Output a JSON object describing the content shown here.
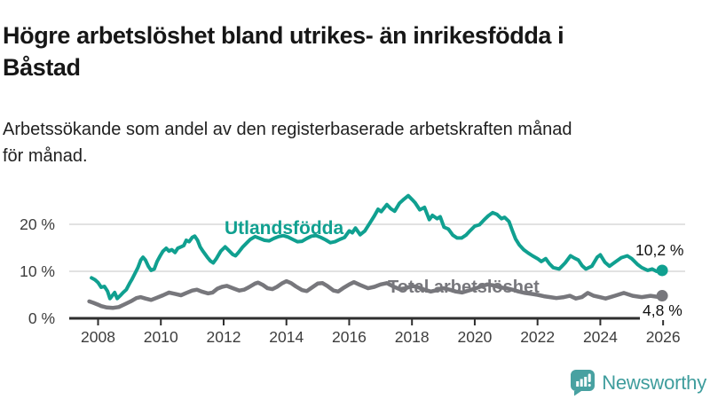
{
  "header": {
    "title_lines": [
      "Högre arbetslöshet bland utrikes- än inrikesfödda i",
      "Båstad"
    ],
    "subtitle_lines": [
      "Arbetssökande som andel av den registerbaserade arbetskraften månad",
      "för månad."
    ]
  },
  "chart_data": {
    "type": "line",
    "title": "Högre arbetslöshet bland utrikes- än inrikesfödda i Båstad",
    "subtitle": "Arbetssökande som andel av den registerbaserade arbetskraften månad för månad.",
    "unit": "%",
    "grid": "horizontal",
    "x_axis": {
      "ticks": [
        "2008",
        "2010",
        "2012",
        "2014",
        "2016",
        "2018",
        "2020",
        "2022",
        "2024",
        "2026"
      ],
      "range": [
        2007.7,
        2026.3
      ]
    },
    "y_axis": {
      "ticks": [
        "0 %",
        "10 %",
        "20 %"
      ],
      "tick_values": [
        0,
        10,
        20
      ],
      "range": [
        0,
        27
      ]
    },
    "colors": {
      "grid": "#d9d9d9",
      "axis": "#2e2e2e",
      "tick_text": "#3d3d3d"
    },
    "series": [
      {
        "name": "Utlandsfödda",
        "color": "#10a090",
        "end_value": 10.2,
        "end_label": "10,2 %",
        "points": [
          [
            2007.79,
            8.6
          ],
          [
            2007.9,
            8.2
          ],
          [
            2008.0,
            7.6
          ],
          [
            2008.1,
            6.6
          ],
          [
            2008.2,
            6.8
          ],
          [
            2008.3,
            5.8
          ],
          [
            2008.38,
            4.2
          ],
          [
            2008.45,
            4.8
          ],
          [
            2008.53,
            5.5
          ],
          [
            2008.61,
            4.2
          ],
          [
            2008.7,
            4.8
          ],
          [
            2008.8,
            5.5
          ],
          [
            2008.9,
            6.1
          ],
          [
            2009.0,
            7.4
          ],
          [
            2009.08,
            8.3
          ],
          [
            2009.18,
            9.6
          ],
          [
            2009.27,
            10.8
          ],
          [
            2009.36,
            12.4
          ],
          [
            2009.43,
            13.0
          ],
          [
            2009.51,
            12.4
          ],
          [
            2009.6,
            11.1
          ],
          [
            2009.69,
            10.2
          ],
          [
            2009.79,
            10.5
          ],
          [
            2009.88,
            12.1
          ],
          [
            2009.98,
            13.3
          ],
          [
            2010.07,
            14.3
          ],
          [
            2010.17,
            14.9
          ],
          [
            2010.26,
            14.3
          ],
          [
            2010.35,
            14.6
          ],
          [
            2010.45,
            14.0
          ],
          [
            2010.54,
            14.9
          ],
          [
            2010.64,
            15.2
          ],
          [
            2010.73,
            15.5
          ],
          [
            2010.81,
            16.6
          ],
          [
            2010.9,
            16.3
          ],
          [
            2011.0,
            17.2
          ],
          [
            2011.08,
            17.5
          ],
          [
            2011.17,
            16.6
          ],
          [
            2011.25,
            15.2
          ],
          [
            2011.34,
            14.3
          ],
          [
            2011.48,
            13.0
          ],
          [
            2011.58,
            12.2
          ],
          [
            2011.67,
            11.8
          ],
          [
            2011.77,
            12.7
          ],
          [
            2011.91,
            14.3
          ],
          [
            2012.05,
            15.2
          ],
          [
            2012.14,
            14.6
          ],
          [
            2012.29,
            13.6
          ],
          [
            2012.38,
            13.3
          ],
          [
            2012.47,
            14.0
          ],
          [
            2012.61,
            15.2
          ],
          [
            2012.76,
            16.2
          ],
          [
            2012.85,
            16.8
          ],
          [
            2013.0,
            17.4
          ],
          [
            2013.15,
            17.0
          ],
          [
            2013.3,
            16.6
          ],
          [
            2013.45,
            16.5
          ],
          [
            2013.6,
            17.0
          ],
          [
            2013.75,
            17.4
          ],
          [
            2013.9,
            17.6
          ],
          [
            2014.05,
            17.3
          ],
          [
            2014.2,
            16.8
          ],
          [
            2014.35,
            16.3
          ],
          [
            2014.5,
            16.4
          ],
          [
            2014.65,
            17.0
          ],
          [
            2014.8,
            17.5
          ],
          [
            2014.95,
            17.6
          ],
          [
            2015.1,
            17.2
          ],
          [
            2015.25,
            16.7
          ],
          [
            2015.4,
            16.1
          ],
          [
            2015.55,
            16.3
          ],
          [
            2015.7,
            16.8
          ],
          [
            2015.85,
            17.2
          ],
          [
            2016.0,
            18.6
          ],
          [
            2016.1,
            18.2
          ],
          [
            2016.2,
            19.2
          ],
          [
            2016.35,
            17.8
          ],
          [
            2016.5,
            18.6
          ],
          [
            2016.65,
            20.2
          ],
          [
            2016.8,
            21.8
          ],
          [
            2016.92,
            23.2
          ],
          [
            2017.02,
            22.7
          ],
          [
            2017.2,
            24.2
          ],
          [
            2017.33,
            23.3
          ],
          [
            2017.45,
            22.8
          ],
          [
            2017.6,
            24.5
          ],
          [
            2017.75,
            25.4
          ],
          [
            2017.88,
            26.1
          ],
          [
            2018.0,
            25.3
          ],
          [
            2018.1,
            24.6
          ],
          [
            2018.25,
            23.1
          ],
          [
            2018.4,
            23.6
          ],
          [
            2018.55,
            21.0
          ],
          [
            2018.65,
            21.9
          ],
          [
            2018.8,
            21.2
          ],
          [
            2018.9,
            21.6
          ],
          [
            2019.02,
            19.4
          ],
          [
            2019.16,
            19.0
          ],
          [
            2019.3,
            17.7
          ],
          [
            2019.44,
            17.1
          ],
          [
            2019.58,
            17.1
          ],
          [
            2019.72,
            17.7
          ],
          [
            2019.86,
            18.7
          ],
          [
            2020.0,
            19.6
          ],
          [
            2020.15,
            19.9
          ],
          [
            2020.29,
            20.9
          ],
          [
            2020.43,
            21.8
          ],
          [
            2020.57,
            22.5
          ],
          [
            2020.71,
            22.1
          ],
          [
            2020.85,
            21.2
          ],
          [
            2020.95,
            21.5
          ],
          [
            2021.09,
            20.6
          ],
          [
            2021.2,
            18.6
          ],
          [
            2021.3,
            16.9
          ],
          [
            2021.42,
            15.6
          ],
          [
            2021.56,
            14.6
          ],
          [
            2021.7,
            13.9
          ],
          [
            2021.84,
            13.3
          ],
          [
            2022.0,
            12.7
          ],
          [
            2022.12,
            12.1
          ],
          [
            2022.26,
            12.7
          ],
          [
            2022.38,
            11.6
          ],
          [
            2022.5,
            10.8
          ],
          [
            2022.69,
            10.5
          ],
          [
            2022.88,
            11.8
          ],
          [
            2023.05,
            13.3
          ],
          [
            2023.18,
            12.8
          ],
          [
            2023.3,
            12.4
          ],
          [
            2023.42,
            11.2
          ],
          [
            2023.54,
            10.5
          ],
          [
            2023.73,
            11.1
          ],
          [
            2023.9,
            13.0
          ],
          [
            2024.0,
            13.5
          ],
          [
            2024.15,
            11.9
          ],
          [
            2024.29,
            11.1
          ],
          [
            2024.48,
            12.0
          ],
          [
            2024.67,
            12.9
          ],
          [
            2024.86,
            13.3
          ],
          [
            2025.0,
            12.7
          ],
          [
            2025.18,
            11.5
          ],
          [
            2025.32,
            10.8
          ],
          [
            2025.51,
            10.2
          ],
          [
            2025.65,
            10.5
          ],
          [
            2025.79,
            10.0
          ],
          [
            2025.97,
            10.2
          ]
        ]
      },
      {
        "name": "Total arbetslöshet",
        "color": "#77777c",
        "end_value": 4.8,
        "end_label": "4,8 %",
        "points": [
          [
            2007.72,
            3.6
          ],
          [
            2007.85,
            3.3
          ],
          [
            2008.0,
            2.9
          ],
          [
            2008.1,
            2.6
          ],
          [
            2008.28,
            2.3
          ],
          [
            2008.47,
            2.2
          ],
          [
            2008.66,
            2.4
          ],
          [
            2008.85,
            3.0
          ],
          [
            2009.04,
            3.6
          ],
          [
            2009.22,
            4.3
          ],
          [
            2009.36,
            4.5
          ],
          [
            2009.51,
            4.2
          ],
          [
            2009.69,
            3.9
          ],
          [
            2009.88,
            4.4
          ],
          [
            2010.07,
            4.9
          ],
          [
            2010.26,
            5.5
          ],
          [
            2010.45,
            5.2
          ],
          [
            2010.64,
            4.9
          ],
          [
            2010.81,
            5.4
          ],
          [
            2011.0,
            5.9
          ],
          [
            2011.15,
            6.1
          ],
          [
            2011.3,
            5.7
          ],
          [
            2011.5,
            5.3
          ],
          [
            2011.65,
            5.5
          ],
          [
            2011.8,
            6.3
          ],
          [
            2011.95,
            6.7
          ],
          [
            2012.1,
            6.9
          ],
          [
            2012.3,
            6.4
          ],
          [
            2012.5,
            5.9
          ],
          [
            2012.65,
            6.1
          ],
          [
            2012.8,
            6.6
          ],
          [
            2013.0,
            7.4
          ],
          [
            2013.1,
            7.6
          ],
          [
            2013.25,
            7.1
          ],
          [
            2013.4,
            6.4
          ],
          [
            2013.55,
            6.2
          ],
          [
            2013.7,
            6.7
          ],
          [
            2013.85,
            7.4
          ],
          [
            2014.0,
            7.9
          ],
          [
            2014.15,
            7.5
          ],
          [
            2014.3,
            6.8
          ],
          [
            2014.5,
            6.0
          ],
          [
            2014.65,
            5.8
          ],
          [
            2014.8,
            6.5
          ],
          [
            2015.0,
            7.4
          ],
          [
            2015.15,
            7.5
          ],
          [
            2015.3,
            6.9
          ],
          [
            2015.5,
            5.9
          ],
          [
            2015.65,
            5.7
          ],
          [
            2015.8,
            6.4
          ],
          [
            2016.0,
            7.2
          ],
          [
            2016.15,
            7.7
          ],
          [
            2016.35,
            7.1
          ],
          [
            2016.6,
            6.4
          ],
          [
            2016.8,
            6.7
          ],
          [
            2017.0,
            7.2
          ],
          [
            2017.2,
            7.5
          ],
          [
            2017.4,
            6.8
          ],
          [
            2017.6,
            6.2
          ],
          [
            2017.8,
            6.4
          ],
          [
            2018.0,
            6.9
          ],
          [
            2018.2,
            6.6
          ],
          [
            2018.4,
            6.1
          ],
          [
            2018.6,
            5.7
          ],
          [
            2018.8,
            6.0
          ],
          [
            2019.0,
            6.4
          ],
          [
            2019.2,
            6.1
          ],
          [
            2019.4,
            5.7
          ],
          [
            2019.6,
            5.5
          ],
          [
            2019.8,
            5.9
          ],
          [
            2020.0,
            6.3
          ],
          [
            2020.2,
            6.8
          ],
          [
            2020.4,
            7.2
          ],
          [
            2020.6,
            7.0
          ],
          [
            2020.8,
            6.6
          ],
          [
            2021.0,
            6.4
          ],
          [
            2021.2,
            6.1
          ],
          [
            2021.4,
            5.7
          ],
          [
            2021.6,
            5.4
          ],
          [
            2021.8,
            5.2
          ],
          [
            2022.0,
            5.0
          ],
          [
            2022.2,
            4.7
          ],
          [
            2022.4,
            4.5
          ],
          [
            2022.6,
            4.3
          ],
          [
            2022.84,
            4.5
          ],
          [
            2023.03,
            4.8
          ],
          [
            2023.22,
            4.2
          ],
          [
            2023.41,
            4.5
          ],
          [
            2023.6,
            5.4
          ],
          [
            2023.79,
            4.8
          ],
          [
            2023.98,
            4.5
          ],
          [
            2024.17,
            4.2
          ],
          [
            2024.46,
            4.8
          ],
          [
            2024.75,
            5.4
          ],
          [
            2025.03,
            4.8
          ],
          [
            2025.32,
            4.5
          ],
          [
            2025.6,
            4.8
          ],
          [
            2025.89,
            4.5
          ],
          [
            2025.97,
            4.8
          ]
        ]
      }
    ]
  },
  "footer": {
    "brand": "Newsworthy",
    "brand_color": "#3f9d9d",
    "logo_icon": "speech-bubble-bar-chart-icon",
    "logo_color": "#48a1a1"
  }
}
